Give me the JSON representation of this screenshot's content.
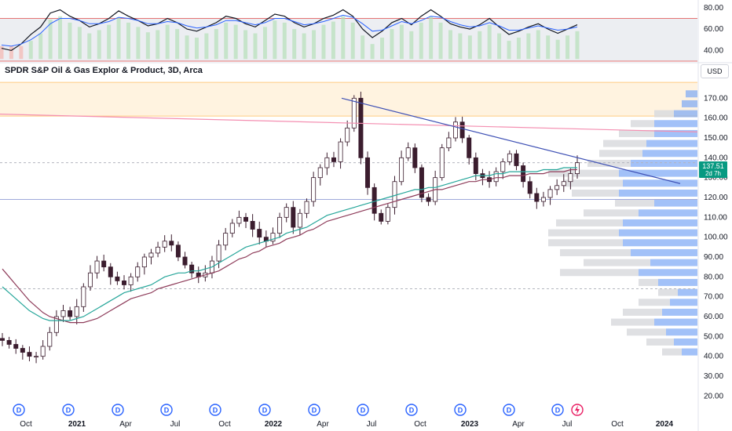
{
  "header": {
    "title": "SPDR S&P Oil & Gas Explor & Product, 3D, Arca",
    "currency": "USD"
  },
  "price_tag": {
    "price": "137.51",
    "countdown": "2d 7h"
  },
  "colors": {
    "up_candle": "#ffffff",
    "down_candle": "#3b1d2e",
    "ma_teal": "#26a69a",
    "ma_maroon": "#8e3c5a",
    "trendline": "#3f51b5",
    "resistance_line": "#f48fb1",
    "rsi_black": "#131722",
    "rsi_blue": "#2962ff",
    "rsi_band": "#eceef2",
    "rsi_bound": "#e57373",
    "supply_zone": "#fff3e0",
    "vp_blue": "#7ba7f5",
    "vp_gray": "#d9dade",
    "price_tag_bg": "#089981"
  },
  "events": {
    "dividend_icon_label": "D",
    "split_icon": "lightning-icon"
  },
  "chart_data": [
    {
      "type": "line",
      "panel": "rsi",
      "ylim": [
        30,
        85
      ],
      "y_ticks": [
        "80.00",
        "60.00",
        "40.00"
      ],
      "bounds": [
        70,
        30
      ],
      "series": [
        {
          "values": [
            42,
            40,
            46,
            55,
            62,
            75,
            78,
            72,
            68,
            62,
            65,
            70,
            77,
            72,
            68,
            63,
            65,
            70,
            66,
            60,
            58,
            62,
            66,
            72,
            70,
            65,
            62,
            68,
            74,
            72,
            66,
            62,
            65,
            70,
            73,
            78,
            72,
            60,
            52,
            58,
            66,
            70,
            64,
            72,
            78,
            72,
            65,
            62,
            60,
            64,
            70,
            62,
            55,
            58,
            62,
            65,
            60,
            56,
            60,
            64
          ]
        },
        {
          "values": [
            45,
            44,
            46,
            50,
            56,
            65,
            70,
            70,
            68,
            65,
            65,
            67,
            71,
            70,
            68,
            65,
            65,
            67,
            66,
            63,
            61,
            62,
            64,
            68,
            68,
            66,
            64,
            66,
            70,
            70,
            67,
            64,
            65,
            67,
            70,
            73,
            71,
            65,
            58,
            59,
            63,
            67,
            65,
            68,
            72,
            71,
            67,
            64,
            62,
            63,
            66,
            63,
            59,
            59,
            61,
            63,
            61,
            59,
            60,
            62
          ]
        }
      ]
    },
    {
      "type": "candlestick",
      "panel": "main",
      "ylim": [
        15,
        180
      ],
      "y_ticks": [
        "170.00",
        "160.00",
        "150.00",
        "140.00",
        "130.00",
        "120.00",
        "110.00",
        "100.00",
        "90.00",
        "80.00",
        "70.00",
        "60.00",
        "50.00",
        "40.00",
        "30.00",
        "20.00"
      ],
      "x_ticks": [
        "Oct",
        "2021",
        "Apr",
        "Jul",
        "Oct",
        "2022",
        "Apr",
        "Jul",
        "Oct",
        "2023",
        "Apr",
        "Jul",
        "Oct",
        "2024"
      ],
      "x_ticks_bold": [
        "2021",
        "2022",
        "2023",
        "2024"
      ],
      "close": [
        48,
        46,
        44,
        42,
        40,
        40,
        45,
        52,
        60,
        63,
        60,
        65,
        75,
        82,
        88,
        85,
        80,
        78,
        76,
        80,
        85,
        90,
        92,
        95,
        98,
        96,
        90,
        86,
        82,
        80,
        82,
        88,
        96,
        102,
        107,
        110,
        108,
        104,
        100,
        98,
        102,
        110,
        115,
        105,
        112,
        118,
        130,
        135,
        140,
        138,
        148,
        155,
        170,
        140,
        125,
        112,
        108,
        115,
        128,
        140,
        145,
        135,
        120,
        118,
        130,
        145,
        150,
        158,
        150,
        140,
        132,
        130,
        128,
        133,
        138,
        142,
        136,
        128,
        122,
        118,
        120,
        124,
        126,
        128,
        132,
        137.51
      ],
      "ma_teal": [
        75,
        72,
        69,
        66,
        63,
        61,
        59,
        58,
        58,
        58,
        58,
        59,
        60,
        62,
        64,
        66,
        68,
        70,
        72,
        73,
        74,
        75,
        76,
        78,
        80,
        81,
        82,
        82,
        83,
        83,
        84,
        85,
        87,
        89,
        91,
        93,
        95,
        96,
        97,
        98,
        99,
        100,
        102,
        103,
        104,
        105,
        107,
        109,
        111,
        112,
        113,
        114,
        115,
        116,
        117,
        118,
        119,
        120,
        121,
        122,
        123,
        124,
        124,
        125,
        125,
        126,
        127,
        128,
        129,
        130,
        131,
        131,
        131,
        132,
        132,
        133,
        133,
        133,
        133,
        133,
        134,
        134,
        134,
        135,
        135,
        135
      ],
      "ma_maroon": [
        84,
        80,
        76,
        72,
        68,
        65,
        62,
        60,
        59,
        58,
        57,
        57,
        57,
        58,
        59,
        61,
        63,
        65,
        67,
        69,
        70,
        71,
        72,
        74,
        75,
        76,
        77,
        78,
        79,
        80,
        81,
        82,
        83,
        85,
        87,
        89,
        90,
        92,
        93,
        95,
        96,
        97,
        99,
        100,
        101,
        103,
        104,
        106,
        108,
        109,
        110,
        111,
        112,
        113,
        114,
        115,
        116,
        117,
        118,
        119,
        120,
        121,
        122,
        123,
        124,
        124,
        125,
        126,
        127,
        128,
        128,
        129,
        129,
        130,
        130,
        131,
        131,
        131,
        132,
        132,
        132,
        133,
        133,
        133,
        134,
        134
      ],
      "trendline": {
        "from": [
          0.625,
          170
        ],
        "to": [
          1.0,
          127
        ]
      },
      "resistance_line": {
        "from": [
          0.0,
          162
        ],
        "to": [
          1.0,
          153
        ]
      },
      "support_line": 119,
      "dashed_level": 74,
      "current_level": 137.51,
      "supply_zone": [
        161,
        178
      ],
      "volume_profile": [
        {
          "price": 172,
          "blue": 0.06,
          "gray": 0.0
        },
        {
          "price": 167,
          "blue": 0.08,
          "gray": 0.0
        },
        {
          "price": 162,
          "blue": 0.12,
          "gray": 0.1
        },
        {
          "price": 157,
          "blue": 0.22,
          "gray": 0.12
        },
        {
          "price": 152,
          "blue": 0.22,
          "gray": 0.18
        },
        {
          "price": 147,
          "blue": 0.26,
          "gray": 0.22
        },
        {
          "price": 142,
          "blue": 0.28,
          "gray": 0.22
        },
        {
          "price": 137,
          "blue": 0.34,
          "gray": 0.22
        },
        {
          "price": 132,
          "blue": 0.4,
          "gray": 0.36
        },
        {
          "price": 127,
          "blue": 0.38,
          "gray": 0.3
        },
        {
          "price": 122,
          "blue": 0.4,
          "gray": 0.24
        },
        {
          "price": 117,
          "blue": 0.22,
          "gray": 0.2
        },
        {
          "price": 112,
          "blue": 0.3,
          "gray": 0.28
        },
        {
          "price": 107,
          "blue": 0.38,
          "gray": 0.34
        },
        {
          "price": 102,
          "blue": 0.4,
          "gray": 0.36
        },
        {
          "price": 97,
          "blue": 0.38,
          "gray": 0.38
        },
        {
          "price": 92,
          "blue": 0.34,
          "gray": 0.36
        },
        {
          "price": 87,
          "blue": 0.24,
          "gray": 0.34
        },
        {
          "price": 82,
          "blue": 0.3,
          "gray": 0.4
        },
        {
          "price": 77,
          "blue": 0.2,
          "gray": 0.1
        },
        {
          "price": 72,
          "blue": 0.1,
          "gray": 0.1
        },
        {
          "price": 67,
          "blue": 0.14,
          "gray": 0.16
        },
        {
          "price": 62,
          "blue": 0.18,
          "gray": 0.2
        },
        {
          "price": 57,
          "blue": 0.22,
          "gray": 0.22
        },
        {
          "price": 52,
          "blue": 0.16,
          "gray": 0.2
        },
        {
          "price": 47,
          "blue": 0.12,
          "gray": 0.14
        },
        {
          "price": 42,
          "blue": 0.08,
          "gray": 0.1
        }
      ]
    }
  ]
}
